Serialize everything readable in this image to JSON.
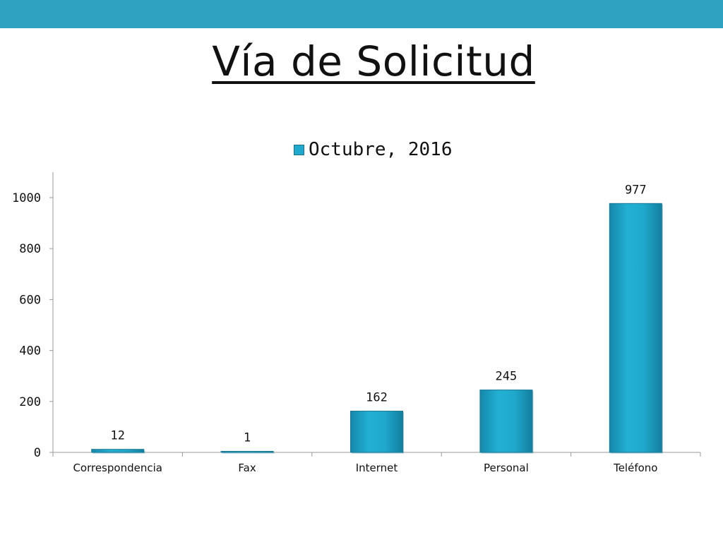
{
  "slide": {
    "title": "Vía de Solicitud",
    "band_color": "#2ea2c0"
  },
  "chart_data": {
    "type": "bar",
    "categories": [
      "Correspondencia",
      "Fax",
      "Internet",
      "Personal",
      "Teléfono"
    ],
    "series": [
      {
        "name": "Octubre, 2016",
        "values": [
          12,
          1,
          162,
          245,
          977
        ],
        "color": "#1fa9cc"
      }
    ],
    "data_labels": [
      "12",
      "1",
      "162",
      "245",
      "977"
    ],
    "y_ticks": [
      "0",
      "200",
      "400",
      "600",
      "800",
      "1000"
    ],
    "ylim": [
      0,
      1100
    ],
    "grid": false,
    "legend_position": "top",
    "title": "",
    "xlabel": "",
    "ylabel": ""
  }
}
